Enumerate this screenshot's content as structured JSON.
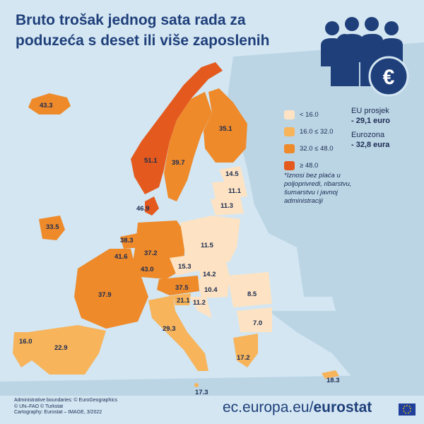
{
  "title": "Bruto trošak jednog sata rada za poduzeća s deset ili više zaposlenih",
  "legend": [
    {
      "label": "< 16.0",
      "color": "#fde3c3"
    },
    {
      "label": "16.0 ≤ 32.0",
      "color": "#f7b45b"
    },
    {
      "label": "32.0 ≤ 48.0",
      "color": "#ee8a2a"
    },
    {
      "label": "≥ 48.0",
      "color": "#e45a1e"
    }
  ],
  "eu": {
    "eu_label": "EU prosjek",
    "eu_value": "- 29,1 euro",
    "ez_label": "Eurozona",
    "ez_value": "- 32,8 eura"
  },
  "note": "*Iznosi bez plaća u poljoprivredi, ribarstvu, šumarstvu i javnoj administraciji",
  "credits": {
    "line1": "Administrative boundaries: © EuroGeographics",
    "line2": "© UN–FAO © Turkstat",
    "line3": "Cartography: Eurostat – IMAGE, 3/2022"
  },
  "footer": {
    "domain": "ec.europa.eu/",
    "brand": "eurostat"
  },
  "icons": {
    "people": "people-group-icon",
    "euro": "euro-coin-icon",
    "flag": "eu-flag-icon"
  },
  "colors": {
    "title": "#1f3f7a",
    "sea": "#d3e6f2",
    "land_other": "#bcd5e5"
  },
  "values": {
    "iceland": "43.3",
    "norway": "51.1",
    "sweden": "39.7",
    "finland": "35.1",
    "estonia": "14.5",
    "latvia": "11.1",
    "lithuania": "11.3",
    "denmark": "46.9",
    "ireland": "33.5",
    "netherlands": "38.3",
    "belgium": "41.6",
    "luxembourg": "43.0",
    "germany": "37.2",
    "poland": "11.5",
    "czechia": "15.3",
    "slovakia": "14.2",
    "hungary": "10.4",
    "austria": "37.5",
    "slovenia": "21.1",
    "croatia": "11.2",
    "romania": "8.5",
    "bulgaria": "7.0",
    "france": "37.9",
    "italy": "29.3",
    "spain": "22.9",
    "portugal": "16.0",
    "greece": "17.2",
    "malta": "17.3",
    "cyprus": "18.3"
  }
}
